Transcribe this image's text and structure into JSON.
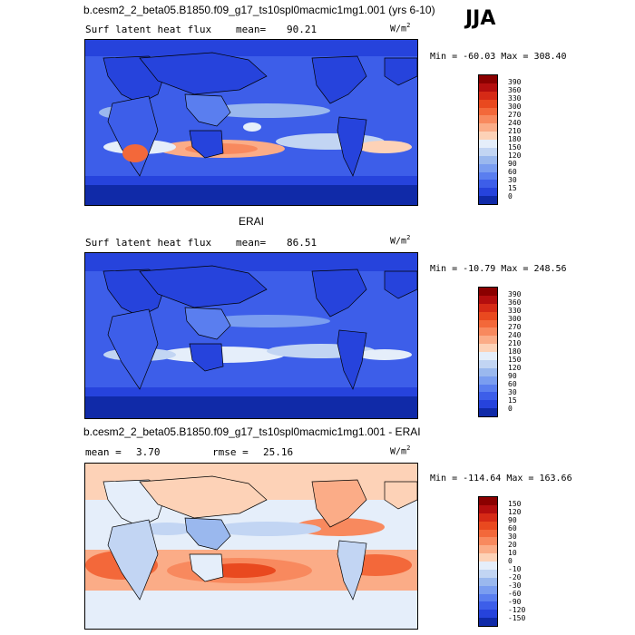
{
  "season": "JJA",
  "panels": [
    {
      "title": "b.cesm2_2_beta05.B1850.f09_g17_ts10spl0macmic1mg1.001 (yrs 6-10)",
      "variable": "Surf latent heat flux",
      "stat_label": "mean=",
      "stat_value": "90.21",
      "units": "W/m",
      "units_exp": "2",
      "min_label": "Min =",
      "min": "-60.03",
      "max_label": "Max =",
      "max": "308.40",
      "levels": [
        "390",
        "360",
        "330",
        "300",
        "270",
        "240",
        "210",
        "180",
        "150",
        "120",
        "90",
        "60",
        "30",
        "15",
        "0"
      ],
      "colors": [
        "#8b0000",
        "#b40e0e",
        "#d62a16",
        "#e9491f",
        "#f3683a",
        "#f8895e",
        "#fbac87",
        "#fdd2b7",
        "#e5eefa",
        "#c2d5f3",
        "#9ab8ee",
        "#7a9df0",
        "#5a7eef",
        "#3d5ee9",
        "#2643dc",
        "#102aa8"
      ]
    },
    {
      "title": "ERAI",
      "variable": "Surf latent heat flux",
      "stat_label": "mean=",
      "stat_value": "86.51",
      "units": "W/m",
      "units_exp": "2",
      "min_label": "Min =",
      "min": "-10.79",
      "max_label": "Max =",
      "max": "248.56",
      "levels": [
        "390",
        "360",
        "330",
        "300",
        "270",
        "240",
        "210",
        "180",
        "150",
        "120",
        "90",
        "60",
        "30",
        "15",
        "0"
      ],
      "colors": [
        "#8b0000",
        "#b40e0e",
        "#d62a16",
        "#e9491f",
        "#f3683a",
        "#f8895e",
        "#fbac87",
        "#fdd2b7",
        "#e5eefa",
        "#c2d5f3",
        "#9ab8ee",
        "#7a9df0",
        "#5a7eef",
        "#3d5ee9",
        "#2643dc",
        "#102aa8"
      ]
    },
    {
      "title": "b.cesm2_2_beta05.B1850.f09_g17_ts10spl0macmic1mg1.001 - ERAI",
      "stat_label": "mean =",
      "stat_value": "3.70",
      "rmse_label": "rmse =",
      "rmse_value": "25.16",
      "units": "W/m",
      "units_exp": "2",
      "min_label": "Min =",
      "min": "-114.64",
      "max_label": "Max =",
      "max": "163.66",
      "levels": [
        "150",
        "120",
        "90",
        "60",
        "30",
        "20",
        "10",
        "0",
        "-10",
        "-20",
        "-30",
        "-60",
        "-90",
        "-120",
        "-150"
      ],
      "colors": [
        "#8b0000",
        "#b40e0e",
        "#d62a16",
        "#e9491f",
        "#f3683a",
        "#f8895e",
        "#fbac87",
        "#fdd2b7",
        "#e5eefa",
        "#c2d5f3",
        "#9ab8ee",
        "#7a9df0",
        "#5a7eef",
        "#3d5ee9",
        "#2643dc",
        "#102aa8"
      ]
    }
  ]
}
